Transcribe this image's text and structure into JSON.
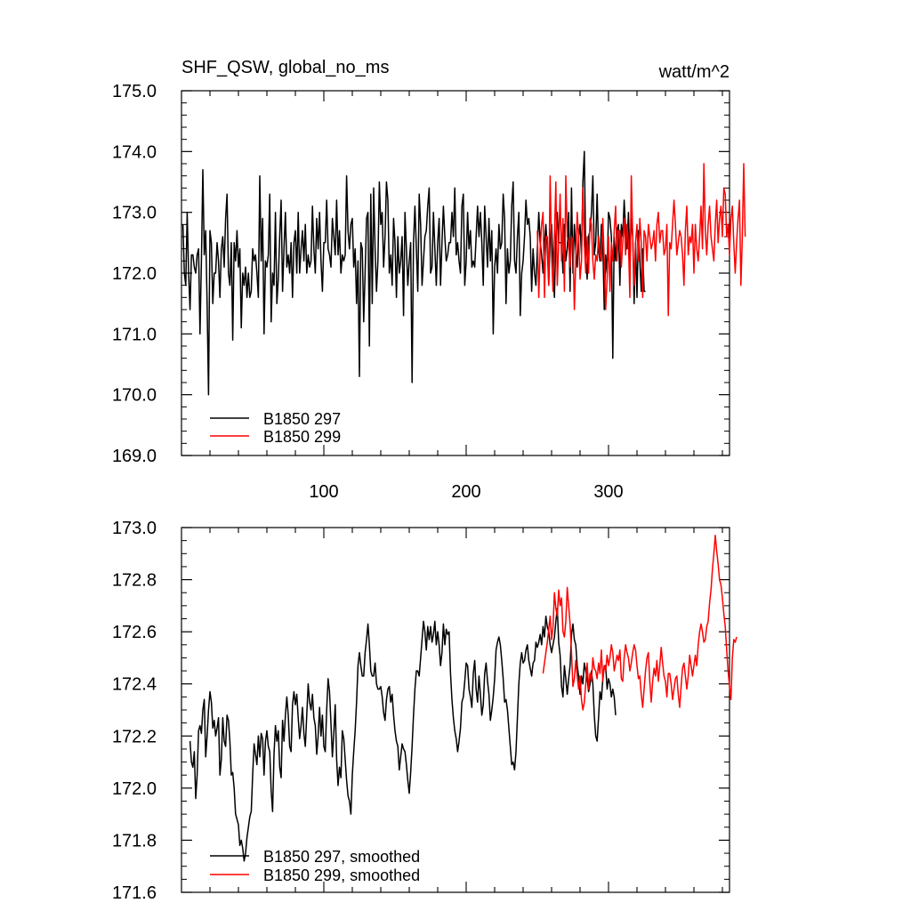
{
  "chart_data": [
    {
      "type": "line",
      "title": "SHF_QSW, global_no_ms",
      "units": "watt/m^2",
      "xlim": [
        0,
        385
      ],
      "ylim": [
        169.0,
        175.0
      ],
      "yticks": [
        "169.0",
        "170.0",
        "171.0",
        "172.0",
        "173.0",
        "174.0",
        "175.0"
      ],
      "xticks": [
        "100",
        "200",
        "300"
      ],
      "legend_position": "bottom-left",
      "series": [
        {
          "name": "B1850 297",
          "color": "#000000",
          "x_start": 1,
          "values": [
            172.8,
            172.0,
            171.8,
            173.0,
            172.0,
            171.4,
            172.3,
            172.3,
            172.1,
            172.0,
            172.3,
            172.4,
            171.0,
            172.2,
            173.7,
            172.3,
            172.7,
            171.5,
            170.0,
            172.7,
            172.5,
            171.5,
            172.0,
            172.0,
            172.5,
            172.2,
            171.6,
            172.4,
            172.6,
            172.1,
            172.9,
            173.3,
            172.0,
            171.8,
            172.5,
            170.9,
            172.5,
            172.2,
            172.7,
            172.1,
            172.4,
            171.1,
            172.0,
            171.8,
            172.1,
            171.6,
            172.0,
            171.6,
            171.7,
            172.4,
            172.2,
            172.3,
            172.0,
            171.6,
            173.6,
            172.2,
            172.9,
            171.0,
            172.2,
            172.1,
            172.3,
            173.3,
            171.2,
            172.0,
            171.8,
            173.0,
            171.5,
            171.9,
            172.6,
            173.2,
            171.7,
            172.4,
            173.0,
            172.1,
            172.3,
            172.0,
            172.5,
            171.6,
            172.5,
            172.7,
            172.0,
            173.0,
            172.0,
            172.4,
            172.7,
            172.2,
            172.8,
            172.0,
            172.3,
            172.1,
            172.2,
            173.1,
            172.4,
            172.0,
            172.9,
            172.4,
            173.0,
            172.2,
            171.7,
            172.5,
            172.5,
            173.2,
            172.4,
            172.3,
            172.1,
            172.9,
            172.6,
            172.3,
            173.2,
            172.3,
            172.7,
            172.0,
            172.3,
            172.2,
            172.3,
            173.6,
            172.7,
            172.4,
            172.8,
            172.9,
            172.1,
            172.4,
            171.5,
            172.2,
            170.3,
            172.5,
            172.4,
            171.2,
            172.0,
            172.9,
            173.0,
            170.8,
            173.3,
            171.5,
            173.4,
            172.4,
            171.7,
            172.2,
            173.5,
            172.8,
            173.0,
            172.1,
            172.6,
            173.5,
            173.2,
            172.0,
            172.3,
            171.8,
            172.9,
            172.5,
            171.6,
            172.6,
            172.0,
            172.2,
            172.6,
            171.3,
            173.0,
            172.4,
            171.8,
            172.2,
            172.5,
            170.2,
            172.5,
            173.1,
            172.4,
            171.7,
            173.3,
            172.8,
            171.8,
            172.2,
            172.6,
            172.7,
            173.1,
            173.4,
            172.0,
            172.1,
            173.0,
            172.4,
            171.8,
            172.5,
            172.9,
            171.8,
            172.5,
            173.1,
            172.6,
            172.2,
            172.3,
            172.5,
            172.5,
            173.0,
            172.6,
            173.4,
            172.3,
            172.5,
            172.2,
            172.0,
            173.1,
            173.3,
            171.8,
            172.2,
            173.0,
            172.4,
            172.7,
            172.1,
            172.2,
            172.1,
            172.6,
            173.1,
            172.6,
            173.0,
            172.5,
            171.8,
            173.1,
            172.6,
            172.1,
            172.9,
            172.2,
            172.7,
            171.0,
            172.1,
            172.4,
            172.0,
            172.8,
            172.4,
            172.5,
            173.3,
            172.9,
            171.5,
            172.4,
            172.0,
            172.2,
            173.1,
            173.5,
            172.2,
            172.0,
            172.6,
            173.0,
            171.3,
            172.0,
            172.2,
            172.6,
            173.2,
            172.8,
            172.9,
            172.6,
            171.7,
            172.4,
            172.0,
            171.8,
            172.4,
            173.0,
            172.5,
            172.3,
            172.0,
            172.5,
            172.8,
            172.4,
            171.8,
            172.6,
            172.8,
            172.2,
            171.6,
            172.6,
            173.0,
            172.5,
            172.5,
            172.5,
            172.0,
            172.8,
            172.2,
            172.4,
            173.0,
            171.7,
            173.4,
            172.0,
            172.8,
            172.4,
            172.1,
            172.6,
            172.8,
            172.3,
            173.5,
            174.0,
            172.3,
            171.9,
            172.6,
            172.7,
            173.0,
            173.6,
            172.3,
            172.5,
            173.3,
            172.4,
            172.2,
            172.8,
            172.5,
            171.4,
            172.3,
            172.0,
            173.0,
            172.9,
            172.6,
            170.6,
            172.6,
            172.2,
            172.7,
            172.8,
            171.8,
            172.8,
            172.6,
            173.2,
            172.7,
            172.4,
            173.0,
            172.2,
            172.9,
            172.6,
            171.5,
            172.5,
            171.6,
            172.7,
            172.2,
            171.7,
            172.4,
            171.7,
            171.7
          ]
        },
        {
          "name": "B1850 299",
          "color": "#ff0000",
          "x_start": 250,
          "values": [
            172.7,
            171.6,
            172.4,
            172.8,
            173.0,
            171.6,
            172.6,
            172.6,
            171.8,
            173.6,
            172.3,
            171.7,
            172.6,
            173.5,
            171.8,
            172.5,
            173.3,
            172.2,
            172.9,
            171.7,
            173.6,
            172.6,
            172.5,
            172.1,
            172.6,
            172.5,
            171.4,
            172.2,
            173.0,
            172.6,
            171.9,
            172.2,
            173.4,
            172.5,
            172.0,
            172.6,
            172.0,
            172.9,
            172.8,
            172.2,
            171.9,
            172.3,
            172.2,
            172.6,
            172.3,
            172.2,
            172.9,
            172.2,
            171.4,
            171.9,
            172.6,
            171.7,
            172.5,
            172.2,
            172.7,
            173.1,
            172.2,
            172.7,
            172.7,
            172.1,
            172.5,
            172.9,
            172.3,
            172.8,
            172.5,
            171.6,
            173.6,
            172.6,
            171.8,
            172.5,
            172.8,
            172.2,
            172.9,
            172.5,
            171.6,
            172.7,
            172.6,
            172.2,
            172.8,
            172.6,
            172.4,
            172.5,
            172.7,
            172.2,
            172.8,
            173.0,
            172.5,
            172.7,
            172.7,
            172.3,
            172.4,
            172.8,
            171.3,
            172.5,
            172.4,
            172.8,
            173.2,
            172.8,
            172.3,
            172.5,
            172.7,
            172.6,
            172.3,
            171.8,
            172.7,
            173.1,
            172.3,
            172.6,
            172.5,
            172.8,
            172.0,
            172.8,
            172.4,
            172.2,
            172.6,
            173.1,
            172.4,
            173.8,
            172.7,
            172.3,
            172.8,
            173.1,
            172.6,
            172.4,
            172.2,
            172.8,
            173.2,
            172.5,
            172.9,
            173.1,
            172.6,
            173.4,
            173.3,
            172.6,
            172.8,
            172.3,
            172.9,
            173.1,
            172.5,
            172.0,
            172.5,
            172.9,
            173.2,
            171.8,
            172.6,
            173.8,
            172.6
          ]
        }
      ]
    },
    {
      "type": "line",
      "title": "",
      "xlim": [
        0,
        385
      ],
      "ylim": [
        171.6,
        173.0
      ],
      "yticks": [
        "171.6",
        "171.8",
        "172.0",
        "172.2",
        "172.4",
        "172.6",
        "172.8",
        "173.0"
      ],
      "legend_position": "bottom-left",
      "series": [
        {
          "name": "B1850 297, smoothed",
          "color": "#000000",
          "x_start": 6,
          "values": [
            172.18,
            172.1,
            172.08,
            172.14,
            171.96,
            172.05,
            172.22,
            172.24,
            172.21,
            172.3,
            172.34,
            172.12,
            172.2,
            172.3,
            172.37,
            172.33,
            172.23,
            172.26,
            172.2,
            172.23,
            172.27,
            172.05,
            172.11,
            172.27,
            172.18,
            172.16,
            172.28,
            172.26,
            172.18,
            172.05,
            172.06,
            172.0,
            171.9,
            171.88,
            171.86,
            171.78,
            171.8,
            171.77,
            171.72,
            171.75,
            171.81,
            171.85,
            171.89,
            171.91,
            172.05,
            172.17,
            172.13,
            172.09,
            172.2,
            172.12,
            172.21,
            172.19,
            172.05,
            172.18,
            172.22,
            172.16,
            172.14,
            171.99,
            171.91,
            172.13,
            172.24,
            172.18,
            172.22,
            172.08,
            172.04,
            172.26,
            172.18,
            172.28,
            172.35,
            172.28,
            172.16,
            172.14,
            172.32,
            172.37,
            172.32,
            172.36,
            172.27,
            172.19,
            172.24,
            172.31,
            172.21,
            172.16,
            172.28,
            172.4,
            172.33,
            172.3,
            172.36,
            172.27,
            172.24,
            172.13,
            172.2,
            172.31,
            172.2,
            172.28,
            172.16,
            172.14,
            172.3,
            172.42,
            172.37,
            172.25,
            172.12,
            172.21,
            172.32,
            172.11,
            172.01,
            172.08,
            172.04,
            172.22,
            172.19,
            172.11,
            172.03,
            171.97,
            171.95,
            171.9,
            172.05,
            172.14,
            172.22,
            172.33,
            172.47,
            172.52,
            172.47,
            172.43,
            172.43,
            172.52,
            172.57,
            172.63,
            172.55,
            172.45,
            172.43,
            172.43,
            172.48,
            172.4,
            172.38,
            172.38,
            172.39,
            172.35,
            172.29,
            172.26,
            172.34,
            172.38,
            172.39,
            172.33,
            172.36,
            172.28,
            172.22,
            172.18,
            172.16,
            172.07,
            172.12,
            172.17,
            172.15,
            172.14,
            172.09,
            172.03,
            171.98,
            172.06,
            172.16,
            172.28,
            172.38,
            172.45,
            172.45,
            172.43,
            172.5,
            172.57,
            172.64,
            172.6,
            172.53,
            172.62,
            172.57,
            172.62,
            172.56,
            172.59,
            172.64,
            172.55,
            172.6,
            172.55,
            172.47,
            172.52,
            172.63,
            172.55,
            172.61,
            172.59,
            172.6,
            172.44,
            172.34,
            172.27,
            172.22,
            172.19,
            172.14,
            172.18,
            172.23,
            172.33,
            172.35,
            172.41,
            172.48,
            172.47,
            172.38,
            172.35,
            172.31,
            172.44,
            172.49,
            172.38,
            172.33,
            172.43,
            172.36,
            172.28,
            172.32,
            172.44,
            172.48,
            172.41,
            172.36,
            172.26,
            172.3,
            172.35,
            172.42,
            172.53,
            172.56,
            172.58,
            172.55,
            172.49,
            172.42,
            172.33,
            172.34,
            172.3,
            172.23,
            172.16,
            172.09,
            172.1,
            172.07,
            172.14,
            172.27,
            172.4,
            172.48,
            172.52,
            172.48,
            172.49,
            172.53,
            172.55,
            172.49,
            172.46,
            172.43,
            172.48,
            172.49,
            172.56,
            172.54,
            172.56,
            172.59,
            172.55,
            172.62,
            172.58,
            172.66,
            172.62,
            172.6,
            172.55,
            172.52,
            172.55,
            172.58,
            172.64,
            172.69,
            172.56,
            172.51,
            172.39,
            172.35,
            172.47,
            172.42,
            172.36,
            172.42,
            172.47,
            172.59,
            172.63,
            172.57,
            172.55,
            172.47,
            172.43,
            172.36,
            172.43,
            172.4,
            172.48,
            172.45,
            172.42,
            172.37,
            172.4,
            172.45,
            172.4,
            172.28,
            172.2,
            172.18,
            172.27,
            172.37,
            172.34,
            172.42,
            172.47,
            172.47,
            172.38,
            172.42,
            172.4,
            172.35,
            172.38,
            172.35,
            172.28
          ]
        },
        {
          "name": "B1850 299, smoothed",
          "color": "#ff0000",
          "x_start": 254,
          "values": [
            172.44,
            172.48,
            172.52,
            172.56,
            172.61,
            172.66,
            172.57,
            172.62,
            172.75,
            172.69,
            172.66,
            172.76,
            172.7,
            172.73,
            172.6,
            172.58,
            172.64,
            172.77,
            172.7,
            172.63,
            172.52,
            172.39,
            172.42,
            172.49,
            172.43,
            172.38,
            172.43,
            172.34,
            172.3,
            172.33,
            172.4,
            172.48,
            172.38,
            172.44,
            172.41,
            172.5,
            172.46,
            172.45,
            172.42,
            172.48,
            172.44,
            172.53,
            172.41,
            172.47,
            172.45,
            172.51,
            172.47,
            172.5,
            172.55,
            172.52,
            172.45,
            172.48,
            172.51,
            172.49,
            172.53,
            172.42,
            172.41,
            172.5,
            172.55,
            172.52,
            172.5,
            172.45,
            172.48,
            172.52,
            172.55,
            172.53,
            172.47,
            172.42,
            172.43,
            172.36,
            172.31,
            172.38,
            172.45,
            172.5,
            172.52,
            172.41,
            172.33,
            172.41,
            172.46,
            172.43,
            172.49,
            172.41,
            172.47,
            172.54,
            172.48,
            172.43,
            172.41,
            172.35,
            172.44,
            172.44,
            172.4,
            172.34,
            172.38,
            172.42,
            172.43,
            172.36,
            172.31,
            172.39,
            172.46,
            172.48,
            172.43,
            172.38,
            172.43,
            172.51,
            172.47,
            172.43,
            172.47,
            172.51,
            172.47,
            172.55,
            172.6,
            172.63,
            172.6,
            172.56,
            172.57,
            172.62,
            172.64,
            172.71,
            172.76,
            172.84,
            172.9,
            172.97,
            172.91,
            172.86,
            172.8,
            172.78,
            172.73,
            172.67,
            172.62,
            172.53,
            172.45,
            172.39,
            172.34,
            172.5,
            172.57,
            172.56,
            172.58
          ]
        }
      ]
    }
  ]
}
